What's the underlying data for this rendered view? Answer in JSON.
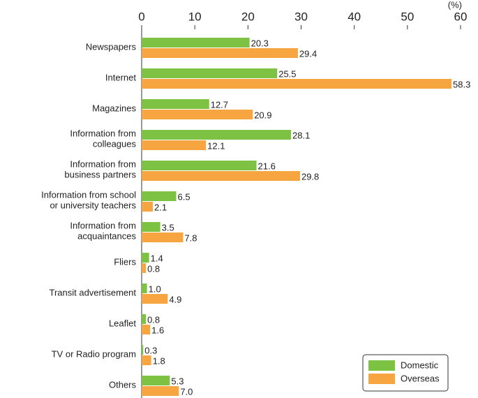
{
  "chart_data": {
    "type": "bar",
    "orientation": "horizontal",
    "unit_label": "(%)",
    "categories": [
      "Newspapers",
      "Internet",
      "Magazines",
      "Information from\ncolleagues",
      "Information from\nbusiness partners",
      "Information from school\nor university teachers",
      "Information from\nacquaintances",
      "Fliers",
      "Transit advertisement",
      "Leaflet",
      "TV or Radio program",
      "Others"
    ],
    "series": [
      {
        "name": "Domestic",
        "color": "#7dc242",
        "values": [
          20.3,
          25.5,
          12.7,
          28.1,
          21.6,
          6.5,
          3.5,
          1.4,
          1.0,
          0.8,
          0.3,
          5.3
        ],
        "value_labels": [
          "20.3",
          "25.5",
          "12.7",
          "28.1",
          "21.6",
          "6.5",
          "3.5",
          "1.4",
          "1.0",
          "0.8",
          "0.3",
          "5.3"
        ]
      },
      {
        "name": "Overseas",
        "color": "#f7a540",
        "values": [
          29.4,
          58.3,
          20.9,
          12.1,
          29.8,
          2.1,
          7.8,
          0.8,
          4.9,
          1.6,
          1.8,
          7.0
        ],
        "value_labels": [
          "29.4",
          "58.3",
          "20.9",
          "12.1",
          "29.8",
          "2.1",
          "7.8",
          "0.8",
          "4.9",
          "1.6",
          "1.8",
          "7.0"
        ]
      }
    ],
    "xlim": [
      0,
      60
    ],
    "xticks": [
      0,
      10,
      20,
      30,
      40,
      50,
      60
    ],
    "legend": "lower right"
  }
}
